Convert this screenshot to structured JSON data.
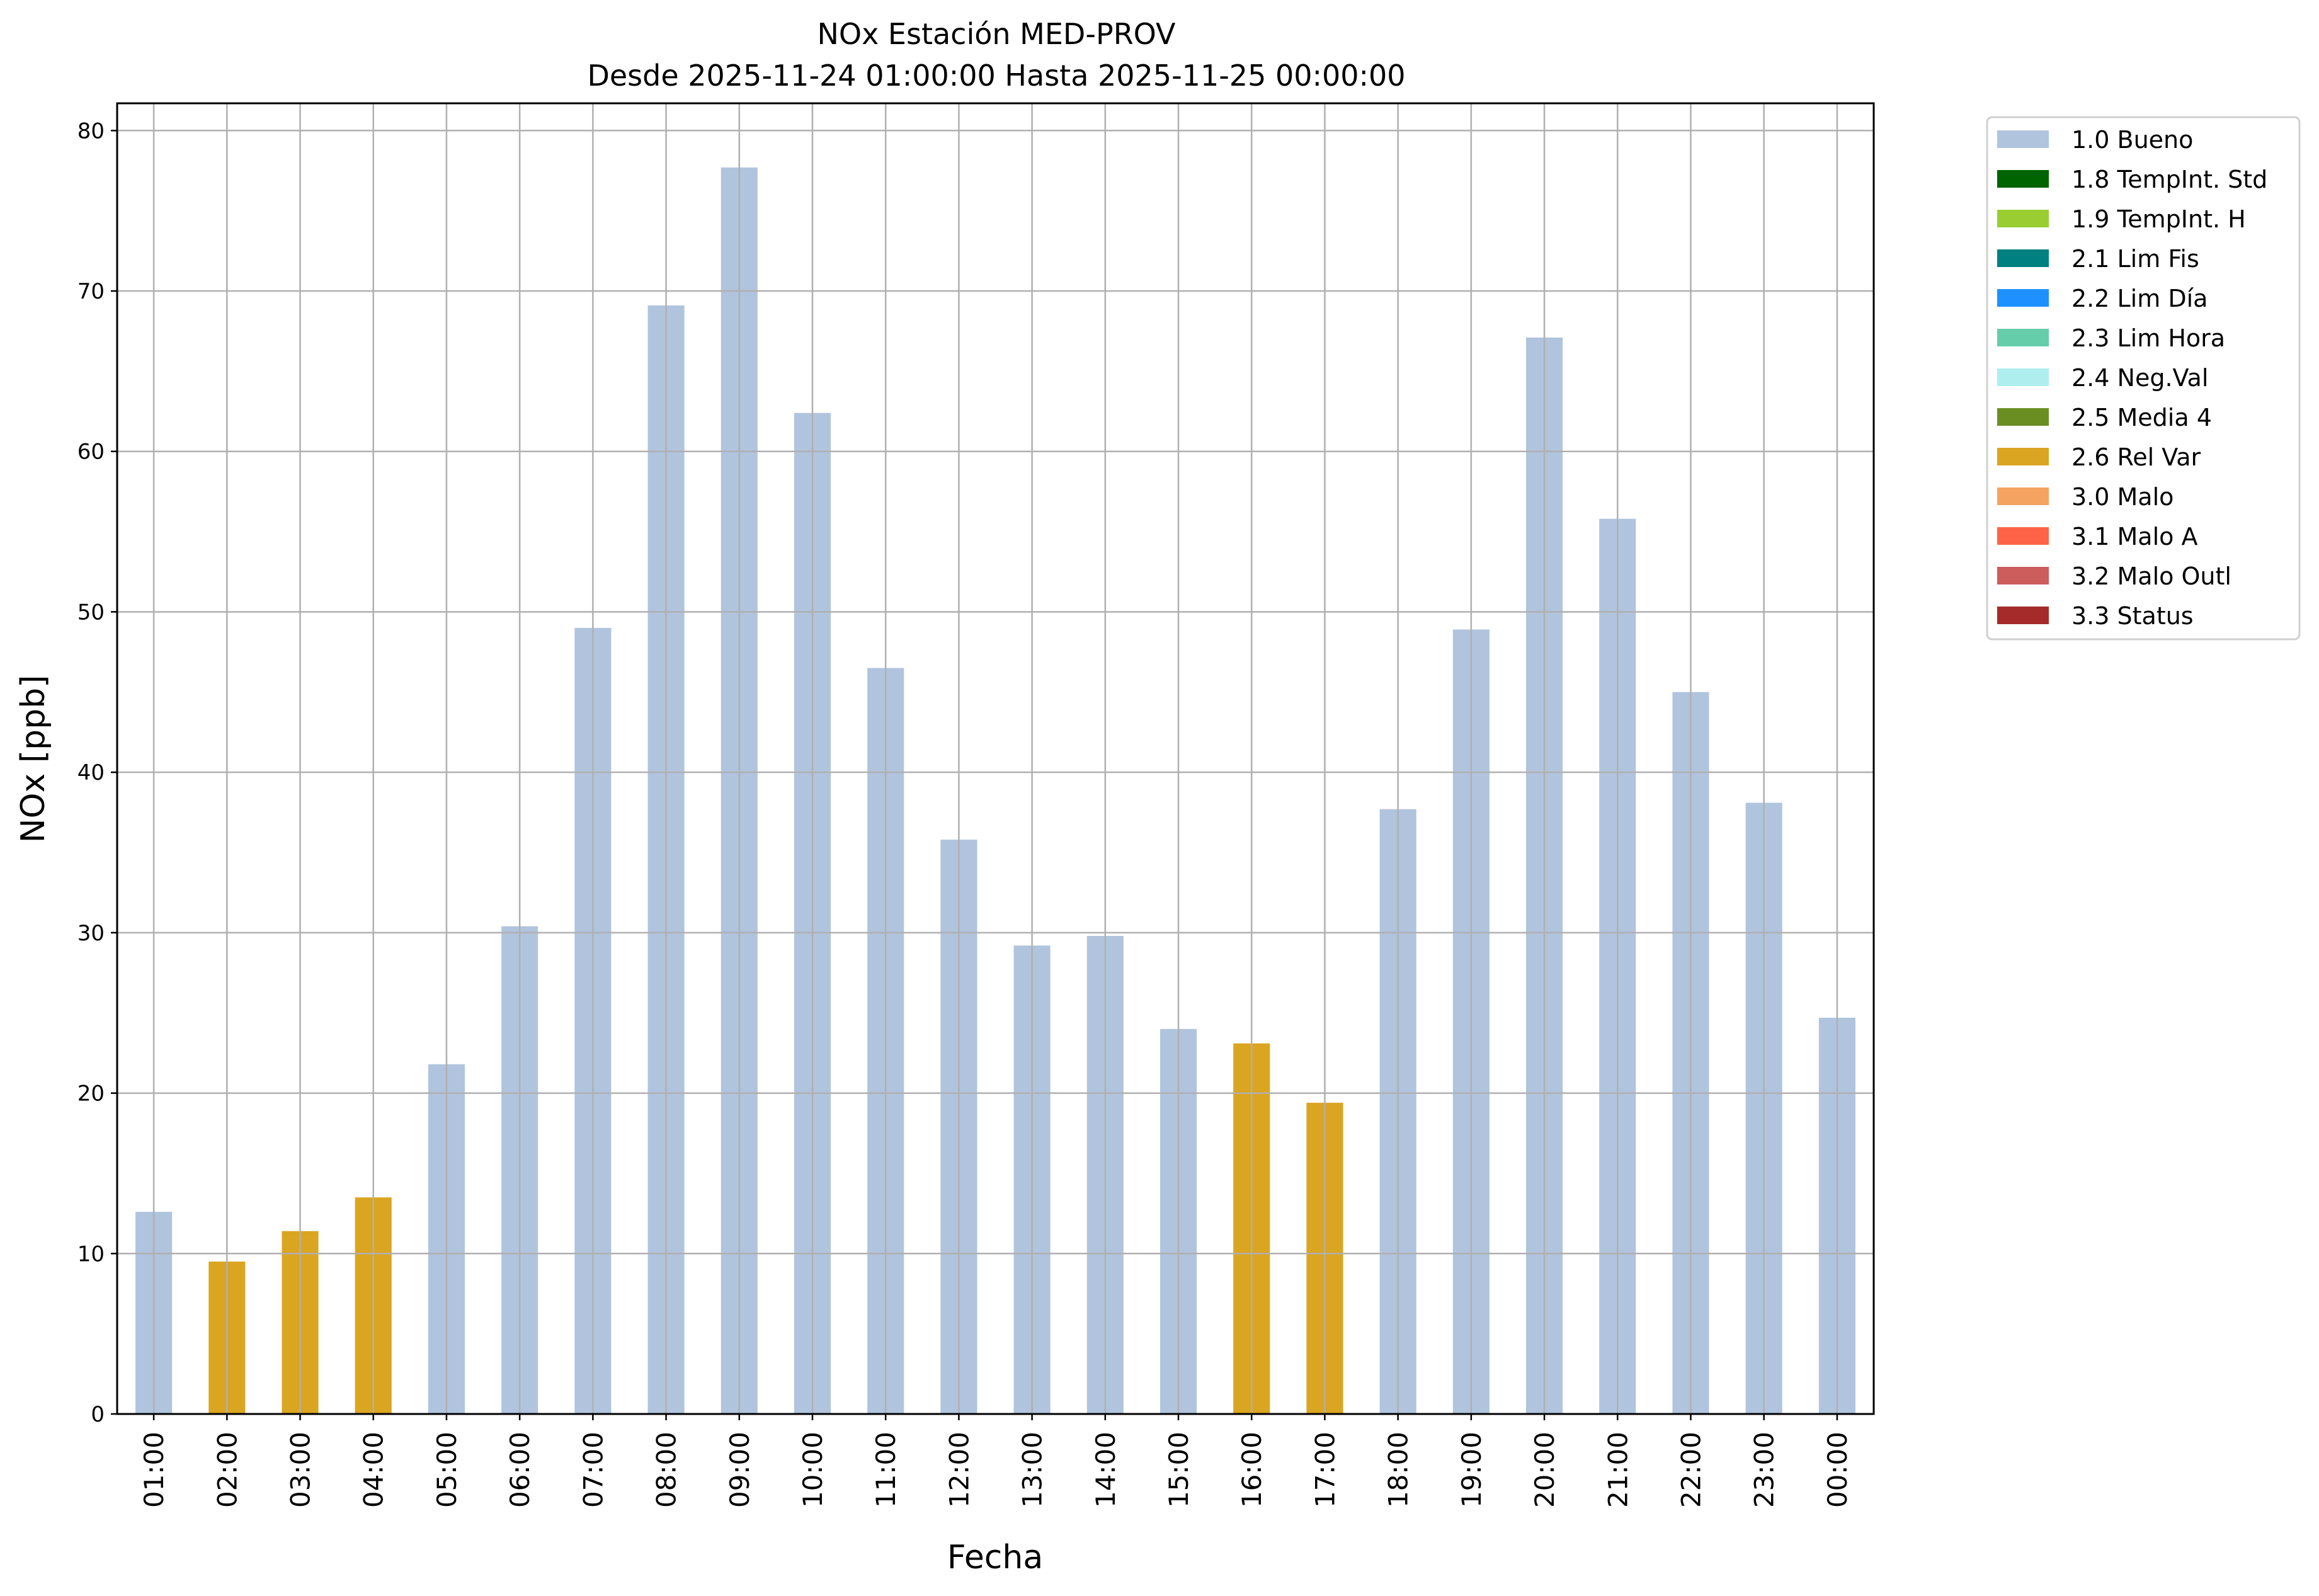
{
  "chart_data": {
    "type": "bar",
    "title": "NOx Estación MED-PROV",
    "subtitle": "Desde 2025-11-24 01:00:00 Hasta 2025-11-25 00:00:00",
    "xlabel": "Fecha",
    "ylabel": "NOx [ppb]",
    "ylim": [
      0,
      81.7
    ],
    "yticks": [
      0,
      10,
      20,
      30,
      40,
      50,
      60,
      70,
      80
    ],
    "grid": true,
    "legend_position": "outside-top-right",
    "categories": [
      "01:00",
      "02:00",
      "03:00",
      "04:00",
      "05:00",
      "06:00",
      "07:00",
      "08:00",
      "09:00",
      "10:00",
      "11:00",
      "12:00",
      "13:00",
      "14:00",
      "15:00",
      "16:00",
      "17:00",
      "18:00",
      "19:00",
      "20:00",
      "21:00",
      "22:00",
      "23:00",
      "00:00"
    ],
    "values": [
      12.6,
      9.5,
      11.4,
      13.5,
      21.8,
      30.4,
      49.0,
      69.1,
      77.7,
      62.4,
      46.5,
      35.8,
      29.2,
      29.8,
      24.0,
      23.1,
      19.4,
      37.7,
      48.9,
      67.1,
      55.8,
      45.0,
      38.1,
      24.7
    ],
    "flags": [
      "1.0 Bueno",
      "2.6 Rel Var",
      "2.6 Rel Var",
      "2.6 Rel Var",
      "1.0 Bueno",
      "1.0 Bueno",
      "1.0 Bueno",
      "1.0 Bueno",
      "1.0 Bueno",
      "1.0 Bueno",
      "1.0 Bueno",
      "1.0 Bueno",
      "1.0 Bueno",
      "1.0 Bueno",
      "1.0 Bueno",
      "2.6 Rel Var",
      "2.6 Rel Var",
      "1.0 Bueno",
      "1.0 Bueno",
      "1.0 Bueno",
      "1.0 Bueno",
      "1.0 Bueno",
      "1.0 Bueno",
      "1.0 Bueno"
    ],
    "legend": [
      {
        "label": "1.0 Bueno",
        "color": "#b0c4de"
      },
      {
        "label": "1.8 TempInt. Std",
        "color": "#006400"
      },
      {
        "label": "1.9 TempInt. H",
        "color": "#9acd32"
      },
      {
        "label": "2.1 Lim Fis",
        "color": "#008080"
      },
      {
        "label": "2.2 Lim Día",
        "color": "#1e90ff"
      },
      {
        "label": "2.3 Lim Hora",
        "color": "#66cdaa"
      },
      {
        "label": "2.4 Neg.Val",
        "color": "#afeeee"
      },
      {
        "label": "2.5 Media 4",
        "color": "#6b8e23"
      },
      {
        "label": "2.6 Rel Var",
        "color": "#daa520"
      },
      {
        "label": "3.0 Malo",
        "color": "#f4a460"
      },
      {
        "label": "3.1 Malo A",
        "color": "#ff6347"
      },
      {
        "label": "3.2 Malo Outl",
        "color": "#cd5c5c"
      },
      {
        "label": "3.3 Status",
        "color": "#a52a2a"
      }
    ]
  }
}
